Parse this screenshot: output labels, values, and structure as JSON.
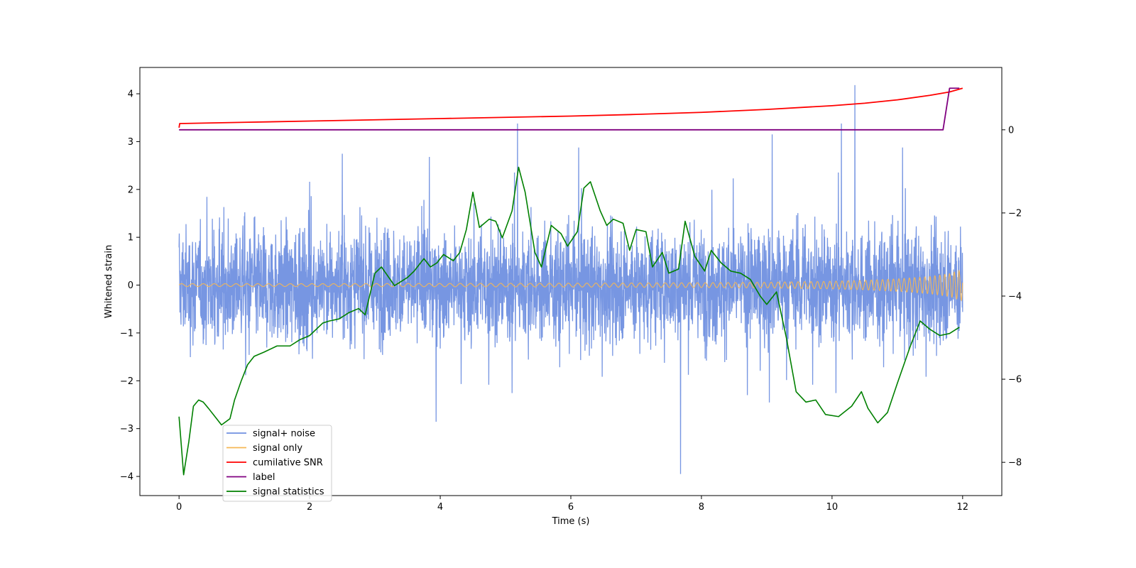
{
  "chart_data": {
    "type": "line",
    "title": "",
    "xlabel": "Time (s)",
    "ylabel": "Whitened strain",
    "y2label": "",
    "xlim": [
      -0.6,
      12.6
    ],
    "ylim": [
      -4.4,
      4.55
    ],
    "y2lim": [
      -8.8,
      1.5
    ],
    "x_ticks": [
      0,
      2,
      4,
      6,
      8,
      10,
      12
    ],
    "y_ticks": [
      -4,
      -3,
      -2,
      -1,
      0,
      1,
      2,
      3,
      4
    ],
    "y2_ticks": [
      -8,
      -6,
      -4,
      -2,
      0
    ],
    "grid": false,
    "legend_position": "lower-left",
    "noise_band": {
      "x_start": 0,
      "x_end": 12,
      "typical_upper": 1.7,
      "typical_lower": -1.7,
      "peak_max": 4.18,
      "peak_max_x": 10.35,
      "peak_min": -3.95,
      "peak_min_x": 7.68
    },
    "series": [
      {
        "name": "signal+ noise",
        "axis": "left",
        "color": "#7090e0",
        "description": "whitened noise band filling roughly -1.7 to 1.7 with spikes"
      },
      {
        "name": "signal only",
        "axis": "left",
        "color": "#f5b755",
        "description": "chirp growing in amplitude toward t=12",
        "x": [
          0,
          2,
          4,
          6,
          8,
          9,
          10,
          10.5,
          11,
          11.5,
          11.8,
          12
        ],
        "amplitude": [
          0.03,
          0.03,
          0.035,
          0.04,
          0.05,
          0.06,
          0.08,
          0.1,
          0.13,
          0.18,
          0.24,
          0.33
        ]
      },
      {
        "name": "cumilative SNR",
        "axis": "right",
        "color": "#ff0000",
        "x": [
          0,
          0.01,
          1,
          2,
          3,
          4,
          5,
          6,
          7,
          8,
          9,
          10,
          10.5,
          11,
          11.5,
          11.8,
          12
        ],
        "values": [
          0.05,
          0.15,
          0.18,
          0.21,
          0.24,
          0.27,
          0.3,
          0.33,
          0.37,
          0.42,
          0.49,
          0.58,
          0.64,
          0.72,
          0.83,
          0.91,
          1.0
        ]
      },
      {
        "name": "label",
        "axis": "right",
        "color": "#800080",
        "x": [
          0,
          11.7,
          11.8,
          11.95
        ],
        "values": [
          0,
          0,
          1,
          1
        ]
      },
      {
        "name": "signal statistics",
        "axis": "right",
        "color": "#008000",
        "x": [
          0,
          0.07,
          0.15,
          0.22,
          0.3,
          0.37,
          0.45,
          0.55,
          0.65,
          0.78,
          0.85,
          0.95,
          1.05,
          1.15,
          1.3,
          1.5,
          1.7,
          1.85,
          2.0,
          2.2,
          2.3,
          2.45,
          2.6,
          2.75,
          2.85,
          3.0,
          3.1,
          3.3,
          3.5,
          3.6,
          3.75,
          3.85,
          3.95,
          4.05,
          4.2,
          4.3,
          4.4,
          4.5,
          4.6,
          4.75,
          4.85,
          4.95,
          5.1,
          5.2,
          5.3,
          5.45,
          5.55,
          5.7,
          5.85,
          5.95,
          6.1,
          6.2,
          6.3,
          6.45,
          6.55,
          6.65,
          6.8,
          6.9,
          7.0,
          7.15,
          7.25,
          7.4,
          7.5,
          7.65,
          7.75,
          7.9,
          8.05,
          8.15,
          8.3,
          8.45,
          8.6,
          8.75,
          8.9,
          9.0,
          9.15,
          9.3,
          9.45,
          9.6,
          9.75,
          9.9,
          10.1,
          10.3,
          10.45,
          10.55,
          10.7,
          10.85,
          11.0,
          11.2,
          11.35,
          11.5,
          11.65,
          11.8,
          11.95
        ],
        "values": [
          -6.9,
          -8.3,
          -7.5,
          -6.65,
          -6.5,
          -6.55,
          -6.7,
          -6.9,
          -7.1,
          -6.95,
          -6.5,
          -6.05,
          -5.65,
          -5.45,
          -5.35,
          -5.2,
          -5.2,
          -5.05,
          -4.95,
          -4.65,
          -4.6,
          -4.55,
          -4.4,
          -4.3,
          -4.45,
          -3.45,
          -3.3,
          -3.75,
          -3.55,
          -3.4,
          -3.1,
          -3.3,
          -3.2,
          -3.0,
          -3.15,
          -2.95,
          -2.4,
          -1.5,
          -2.35,
          -2.15,
          -2.2,
          -2.6,
          -1.95,
          -0.9,
          -1.5,
          -2.95,
          -3.3,
          -2.3,
          -2.5,
          -2.8,
          -2.45,
          -1.4,
          -1.25,
          -1.95,
          -2.3,
          -2.15,
          -2.25,
          -2.9,
          -2.4,
          -2.45,
          -3.3,
          -2.95,
          -3.45,
          -3.35,
          -2.2,
          -3.05,
          -3.4,
          -2.9,
          -3.2,
          -3.4,
          -3.45,
          -3.6,
          -4.0,
          -4.2,
          -3.9,
          -5.0,
          -6.3,
          -6.55,
          -6.5,
          -6.85,
          -6.9,
          -6.65,
          -6.3,
          -6.7,
          -7.05,
          -6.8,
          -6.1,
          -5.2,
          -4.6,
          -4.8,
          -4.95,
          -4.9,
          -4.75
        ]
      }
    ]
  },
  "legend": {
    "items": [
      {
        "label": "signal+ noise",
        "color": "#7090e0"
      },
      {
        "label": "signal only",
        "color": "#f5b755"
      },
      {
        "label": "cumilative SNR",
        "color": "#ff0000"
      },
      {
        "label": "label",
        "color": "#800080"
      },
      {
        "label": "signal statistics",
        "color": "#008000"
      }
    ]
  }
}
